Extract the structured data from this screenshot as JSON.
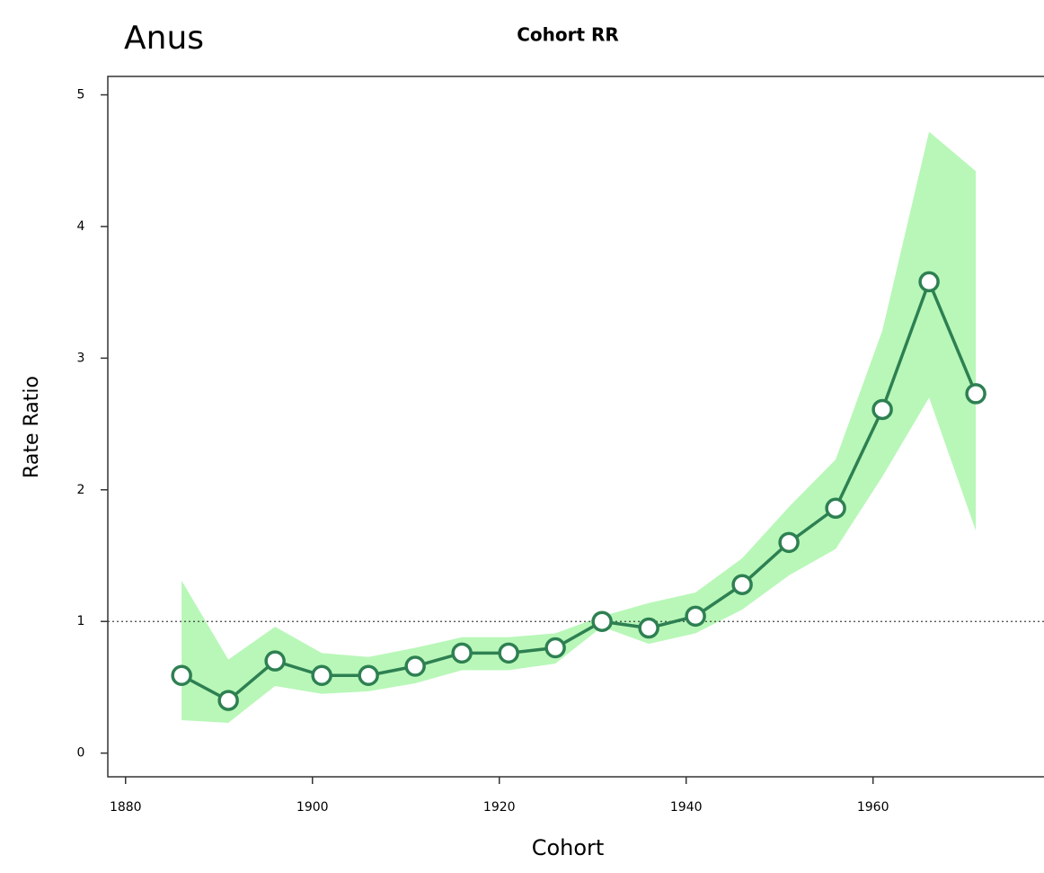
{
  "chart_data": {
    "type": "line",
    "panel_label": "Anus",
    "title": "Cohort RR",
    "x_label": "Cohort",
    "y_label": "Rate Ratio",
    "x": [
      1886,
      1891,
      1896,
      1901,
      1906,
      1911,
      1916,
      1921,
      1926,
      1931,
      1936,
      1941,
      1946,
      1951,
      1956,
      1961,
      1966,
      1971
    ],
    "values": [
      0.59,
      0.4,
      0.7,
      0.59,
      0.59,
      0.66,
      0.76,
      0.76,
      0.8,
      1.0,
      0.95,
      1.04,
      1.28,
      1.6,
      1.86,
      2.61,
      3.58,
      2.73
    ],
    "ci_upper": [
      1.31,
      0.71,
      0.96,
      0.76,
      0.73,
      0.8,
      0.88,
      0.88,
      0.91,
      1.04,
      1.14,
      1.22,
      1.48,
      1.87,
      2.23,
      3.21,
      4.72,
      4.42
    ],
    "ci_lower": [
      0.25,
      0.23,
      0.51,
      0.45,
      0.47,
      0.53,
      0.63,
      0.63,
      0.68,
      0.96,
      0.83,
      0.91,
      1.09,
      1.35,
      1.55,
      2.1,
      2.7,
      1.69
    ],
    "color": "#2e8052",
    "band_color": "#b8f7b8",
    "reference_line": 1,
    "xlim": [
      1878.1,
      1978.3
    ],
    "ylim": [
      -0.18,
      5.14
    ],
    "xticks": [
      1880,
      1900,
      1920,
      1940,
      1960
    ],
    "yticks": [
      0,
      1,
      2,
      3,
      4,
      5
    ]
  }
}
